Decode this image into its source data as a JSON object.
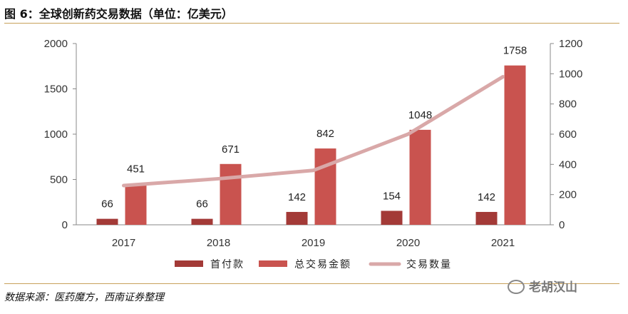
{
  "title": "图 6：全球创新药交易数据（单位：亿美元）",
  "source": "数据来源：医药魔方，西南证券整理",
  "watermark": "老胡汉山",
  "colors": {
    "upfront": "#a33a37",
    "total": "#c9534f",
    "deals_line": "#d9a8a8",
    "rule": "#c8a15a"
  },
  "chart_data": {
    "type": "bar",
    "categories": [
      "2017",
      "2018",
      "2019",
      "2020",
      "2021"
    ],
    "series": [
      {
        "name": "首付款",
        "type": "bar",
        "axis": "left",
        "values": [
          66,
          66,
          142,
          154,
          142
        ]
      },
      {
        "name": "总交易金额",
        "type": "bar",
        "axis": "left",
        "values": [
          451,
          671,
          842,
          1048,
          1758
        ]
      },
      {
        "name": "交易数量",
        "type": "line",
        "axis": "right",
        "values": [
          260,
          305,
          360,
          600,
          980
        ]
      }
    ],
    "y_left": {
      "ylim": [
        0,
        2000
      ],
      "ticks": [
        0,
        500,
        1000,
        1500,
        2000
      ]
    },
    "y_right": {
      "ylim": [
        0,
        1200
      ],
      "ticks": [
        0,
        200,
        400,
        600,
        800,
        1000,
        1200
      ]
    },
    "data_labels": {
      "首付款": [
        "66",
        "66",
        "142",
        "154",
        "142"
      ],
      "总交易金额": [
        "451",
        "671",
        "842",
        "1048",
        "1758"
      ]
    },
    "legend": {
      "position": "bottom",
      "items": [
        "首付款",
        "总交易金额",
        "交易数量"
      ]
    },
    "grid": false
  }
}
